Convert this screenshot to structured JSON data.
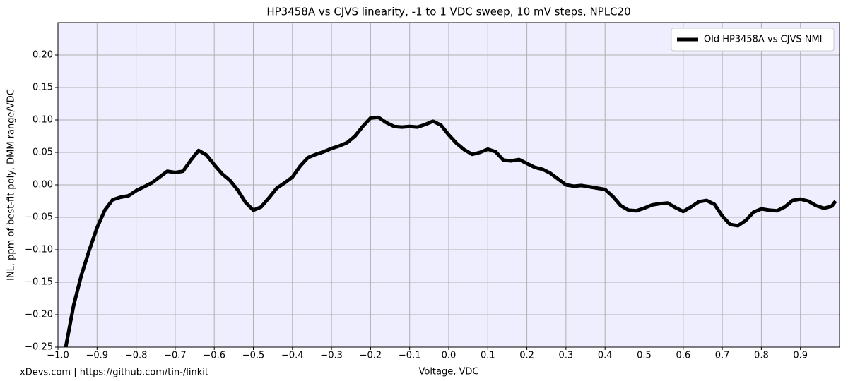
{
  "chart_data": {
    "type": "line",
    "title": "HP3458A vs CJVS linearity, -1 to 1 VDC sweep, 10 mV steps, NPLC20",
    "x_label": "Voltage, VDC",
    "y_label": "INL, ppm of best-fit poly, DMM range/VDC",
    "footer": "xDevs.com | https://github.com/tin-/linkit",
    "x": [
      -0.98,
      -0.96,
      -0.94,
      -0.92,
      -0.9,
      -0.88,
      -0.86,
      -0.84,
      -0.82,
      -0.8,
      -0.78,
      -0.76,
      -0.74,
      -0.72,
      -0.7,
      -0.68,
      -0.66,
      -0.64,
      -0.62,
      -0.6,
      -0.58,
      -0.56,
      -0.54,
      -0.52,
      -0.5,
      -0.48,
      -0.46,
      -0.44,
      -0.42,
      -0.4,
      -0.38,
      -0.36,
      -0.34,
      -0.32,
      -0.3,
      -0.28,
      -0.26,
      -0.24,
      -0.22,
      -0.2,
      -0.18,
      -0.16,
      -0.14,
      -0.12,
      -0.1,
      -0.08,
      -0.06,
      -0.04,
      -0.02,
      0,
      0.02,
      0.04,
      0.06,
      0.08,
      0.1,
      0.12,
      0.14,
      0.16,
      0.18,
      0.2,
      0.22,
      0.24,
      0.26,
      0.28,
      0.3,
      0.32,
      0.34,
      0.36,
      0.38,
      0.4,
      0.42,
      0.44,
      0.46,
      0.48,
      0.5,
      0.52,
      0.54,
      0.56,
      0.58,
      0.6,
      0.62,
      0.64,
      0.66,
      0.68,
      0.7,
      0.72,
      0.74,
      0.76,
      0.78,
      0.8,
      0.82,
      0.84,
      0.86,
      0.88,
      0.9,
      0.92,
      0.94,
      0.96,
      0.98,
      0.99
    ],
    "series": [
      {
        "name": "Old HP3458A vs CJVS NMI",
        "color": "#000000",
        "values": [
          -0.25,
          -0.186,
          -0.139,
          -0.101,
          -0.066,
          -0.039,
          -0.023,
          -0.019,
          -0.017,
          -0.009,
          -0.003,
          0.003,
          0.012,
          0.021,
          0.019,
          0.021,
          0.038,
          0.053,
          0.046,
          0.031,
          0.017,
          0.007,
          -0.008,
          -0.027,
          -0.039,
          -0.034,
          -0.02,
          -0.005,
          0.003,
          0.012,
          0.029,
          0.042,
          0.047,
          0.051,
          0.056,
          0.06,
          0.065,
          0.075,
          0.09,
          0.103,
          0.104,
          0.096,
          0.09,
          0.089,
          0.09,
          0.089,
          0.093,
          0.098,
          0.092,
          0.077,
          0.064,
          0.054,
          0.047,
          0.05,
          0.055,
          0.051,
          0.038,
          0.037,
          0.039,
          0.033,
          0.027,
          0.024,
          0.018,
          0.009,
          0,
          -0.002,
          -0.001,
          -0.003,
          -0.005,
          -0.007,
          -0.018,
          -0.032,
          -0.039,
          -0.04,
          -0.036,
          -0.031,
          -0.029,
          -0.028,
          -0.035,
          -0.041,
          -0.034,
          -0.026,
          -0.024,
          -0.03,
          -0.048,
          -0.061,
          -0.063,
          -0.055,
          -0.042,
          -0.037,
          -0.039,
          -0.04,
          -0.034,
          -0.024,
          -0.022,
          -0.025,
          -0.032,
          -0.036,
          -0.033,
          -0.025
        ]
      }
    ],
    "xlim": [
      -1,
      1
    ],
    "xticks": [
      {
        "value": -1,
        "label": "−1.0"
      },
      {
        "value": -0.9,
        "label": "−0.9"
      },
      {
        "value": -0.8,
        "label": "−0.8"
      },
      {
        "value": -0.7,
        "label": "−0.7"
      },
      {
        "value": -0.6,
        "label": "−0.6"
      },
      {
        "value": -0.5,
        "label": "−0.5"
      },
      {
        "value": -0.4,
        "label": "−0.4"
      },
      {
        "value": -0.3,
        "label": "−0.3"
      },
      {
        "value": -0.2,
        "label": "−0.2"
      },
      {
        "value": -0.1,
        "label": "−0.1"
      },
      {
        "value": 0,
        "label": "0.0"
      },
      0.1,
      0.2,
      0.3,
      0.4,
      0.5,
      0.6,
      0.7,
      0.8,
      0.9
    ],
    "ylim": [
      -0.25,
      0.25
    ],
    "yticks": [
      {
        "value": -0.25,
        "label": "−0.25"
      },
      {
        "value": -0.2,
        "label": "−0.20"
      },
      {
        "value": -0.15,
        "label": "−0.15"
      },
      {
        "value": -0.1,
        "label": "−0.10"
      },
      {
        "value": -0.05,
        "label": "−0.05"
      },
      {
        "value": 0,
        "label": "0.00"
      },
      {
        "value": 0.05,
        "label": "0.05"
      },
      {
        "value": 0.1,
        "label": "0.10"
      },
      {
        "value": 0.15,
        "label": "0.15"
      },
      {
        "value": 0.2,
        "label": "0.20"
      }
    ],
    "grid": true,
    "legend": "upper right"
  }
}
